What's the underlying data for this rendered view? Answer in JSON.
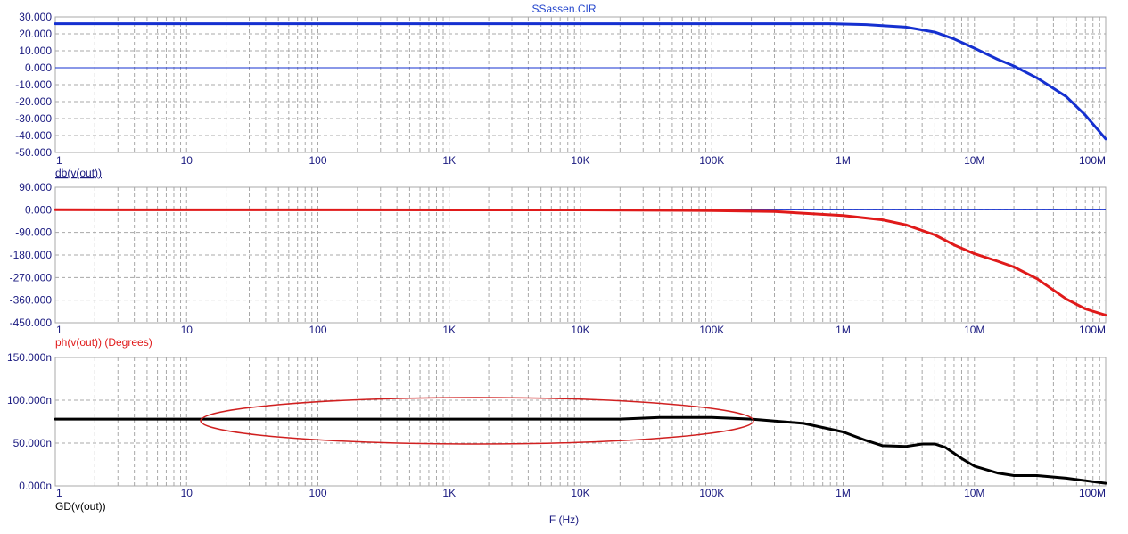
{
  "window": {
    "title": "SSassen.CIR"
  },
  "colors": {
    "title": "#2244cc",
    "grid": "#a8a8a8",
    "frame": "#a8a8a8",
    "axis_text": "#1a1a80",
    "magnitude": "#1530d0",
    "phase": "#e01a1a",
    "group_delay": "#000000",
    "annotation": "#d02020",
    "zero_line": "#1530d0"
  },
  "x_axis": {
    "title": "F (Hz)",
    "scale": "log",
    "range": [
      1,
      100000000
    ],
    "tick_labels": [
      "1",
      "10",
      "100",
      "1K",
      "10K",
      "100K",
      "1M",
      "10M",
      "100M"
    ]
  },
  "chart_data": [
    {
      "type": "line",
      "ylabel": "db(v(out))",
      "ylim": [
        -50,
        30
      ],
      "y_tick_labels": [
        "30.000",
        "20.000",
        "10.000",
        "0.000",
        "-10.000",
        "-20.000",
        "-30.000",
        "-40.000",
        "-50.000"
      ],
      "grid": true,
      "series": [
        {
          "name": "db(v(out))",
          "x": [
            1,
            100000,
            800000,
            1500000,
            3000000,
            5000000,
            7000000,
            10000000,
            15000000,
            20000000,
            30000000,
            50000000,
            70000000,
            100000000
          ],
          "y": [
            26,
            26,
            26,
            25.5,
            24,
            21,
            17,
            11.5,
            5,
            1,
            -6,
            -17,
            -28,
            -42
          ]
        }
      ]
    },
    {
      "type": "line",
      "ylabel": "ph(v(out)) (Degrees)",
      "ylim": [
        -450,
        90
      ],
      "y_tick_labels": [
        "90.000",
        "0.000",
        "-90.000",
        "-180.000",
        "-270.000",
        "-360.000",
        "-450.000"
      ],
      "grid": true,
      "series": [
        {
          "name": "ph(v(out)) (Degrees)",
          "x": [
            1,
            10000,
            100000,
            300000,
            1000000,
            2000000,
            3000000,
            5000000,
            7000000,
            10000000,
            15000000,
            20000000,
            30000000,
            50000000,
            70000000,
            100000000
          ],
          "y": [
            0,
            -0.5,
            -3,
            -7,
            -23,
            -40,
            -60,
            -100,
            -140,
            -175,
            -205,
            -228,
            -275,
            -355,
            -395,
            -420
          ]
        }
      ]
    },
    {
      "type": "line",
      "ylabel": "GD(v(out))",
      "ylim": [
        0,
        150
      ],
      "y_tick_labels": [
        "150.000n",
        "100.000n",
        "50.000n",
        "0.000n"
      ],
      "grid": true,
      "series": [
        {
          "name": "GD(v(out))",
          "x": [
            1,
            20000,
            40000,
            100000,
            200000,
            500000,
            1000000,
            1500000,
            2000000,
            3000000,
            4000000,
            5000000,
            6000000,
            8000000,
            10000000,
            15000000,
            20000000,
            30000000,
            50000000,
            70000000,
            100000000
          ],
          "y": [
            78,
            78,
            80,
            80,
            78,
            73,
            63,
            53,
            47,
            46,
            49,
            49,
            45,
            32,
            23,
            15,
            12,
            12,
            9,
            6,
            3
          ]
        }
      ]
    }
  ]
}
